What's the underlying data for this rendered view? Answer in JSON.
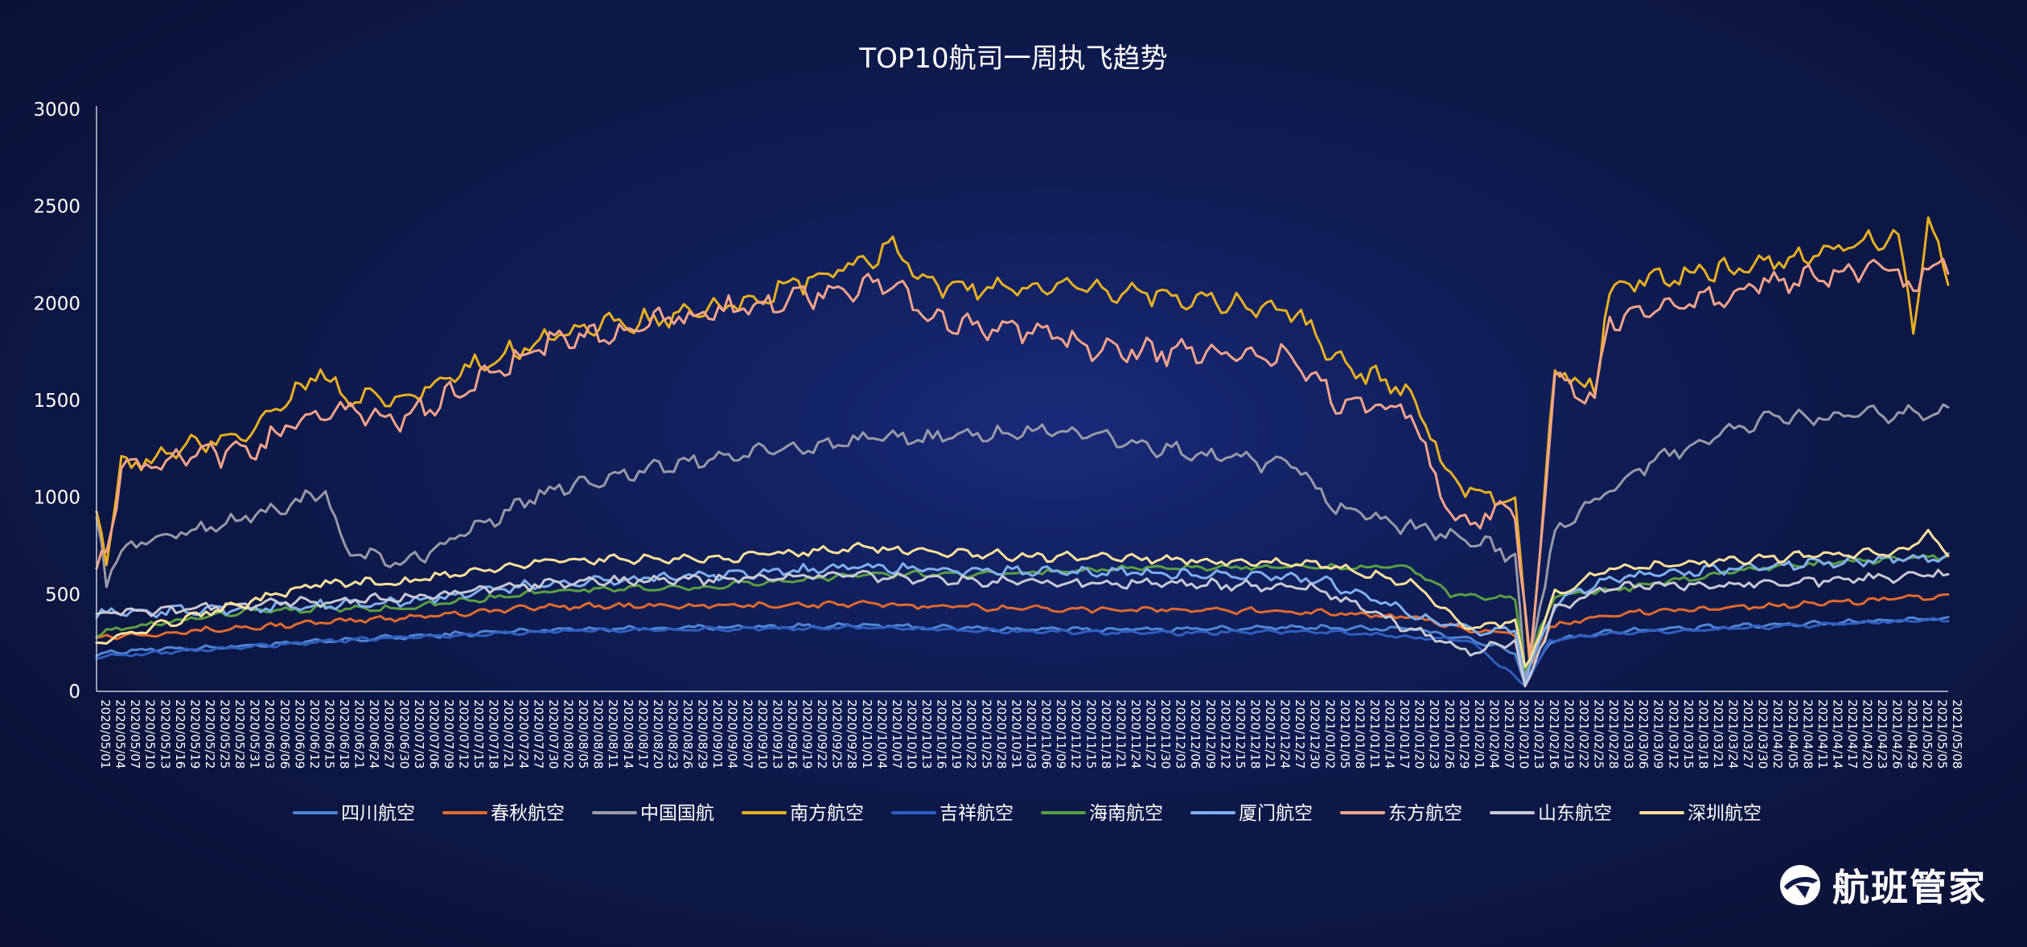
{
  "brand": {
    "name": "航班管家",
    "logo_icon": "airplane-globe-icon"
  },
  "chart_data": {
    "type": "line",
    "title": "TOP10航司一周执飞趋势",
    "xlabel": "",
    "ylabel": "",
    "ylim": [
      0,
      3000
    ],
    "yticks": [
      0,
      500,
      1000,
      1500,
      2000,
      2500,
      3000
    ],
    "grid": false,
    "legend_position": "bottom-center",
    "x_start": "2020/05/01",
    "x_end": "2021/05/08",
    "tick_labels": [
      "2020/05/01",
      "2020/05/04",
      "2020/05/07",
      "2020/05/10",
      "2020/05/13",
      "2020/05/16",
      "2020/05/19",
      "2020/05/22",
      "2020/05/25",
      "2020/05/28",
      "2020/05/31",
      "2020/06/03",
      "2020/06/06",
      "2020/06/09",
      "2020/06/12",
      "2020/06/15",
      "2020/06/18",
      "2020/06/21",
      "2020/06/24",
      "2020/06/27",
      "2020/06/30",
      "2020/07/03",
      "2020/07/06",
      "2020/07/09",
      "2020/07/12",
      "2020/07/15",
      "2020/07/18",
      "2020/07/21",
      "2020/07/24",
      "2020/07/27",
      "2020/07/30",
      "2020/08/02",
      "2020/08/05",
      "2020/08/08",
      "2020/08/11",
      "2020/08/14",
      "2020/08/17",
      "2020/08/20",
      "2020/08/23",
      "2020/08/26",
      "2020/08/29",
      "2020/09/01",
      "2020/09/04",
      "2020/09/07",
      "2020/09/10",
      "2020/09/13",
      "2020/09/16",
      "2020/09/19",
      "2020/09/22",
      "2020/09/25",
      "2020/09/28",
      "2020/10/01",
      "2020/10/04",
      "2020/10/07",
      "2020/10/10",
      "2020/10/13",
      "2020/10/16",
      "2020/10/19",
      "2020/10/22",
      "2020/10/25",
      "2020/10/28",
      "2020/10/31",
      "2020/11/03",
      "2020/11/06",
      "2020/11/09",
      "2020/11/12",
      "2020/11/15",
      "2020/11/18",
      "2020/11/21",
      "2020/11/24",
      "2020/11/27",
      "2020/11/30",
      "2020/12/03",
      "2020/12/06",
      "2020/12/09",
      "2020/12/12",
      "2020/12/15",
      "2020/12/18",
      "2020/12/21",
      "2020/12/24",
      "2020/12/27",
      "2020/12/30",
      "2021/01/02",
      "2021/01/05",
      "2021/01/08",
      "2021/01/11",
      "2021/01/14",
      "2021/01/17",
      "2021/01/20",
      "2021/01/23",
      "2021/01/26",
      "2021/01/29",
      "2021/02/01",
      "2021/02/04",
      "2021/02/07",
      "2021/02/10",
      "2021/02/13",
      "2021/02/16",
      "2021/02/19",
      "2021/02/22",
      "2021/02/25",
      "2021/02/28",
      "2021/03/03",
      "2021/03/06",
      "2021/03/09",
      "2021/03/12",
      "2021/03/15",
      "2021/03/18",
      "2021/03/21",
      "2021/03/24",
      "2021/03/27",
      "2021/03/30",
      "2021/04/02",
      "2021/04/05",
      "2021/04/08",
      "2021/04/11",
      "2021/04/14",
      "2021/04/17",
      "2021/04/20",
      "2021/04/23",
      "2021/04/26",
      "2021/04/29",
      "2021/05/02",
      "2021/05/05",
      "2021/05/08"
    ],
    "series": [
      {
        "name": "四川航空",
        "color": "#4f86d6",
        "keypoints": [
          [
            "2020/05/01",
            190
          ],
          [
            "2020/05/07",
            210
          ],
          [
            "2020/06/01",
            235
          ],
          [
            "2020/07/01",
            280
          ],
          [
            "2020/08/01",
            320
          ],
          [
            "2020/09/01",
            330
          ],
          [
            "2020/10/01",
            340
          ],
          [
            "2020/11/01",
            320
          ],
          [
            "2020/12/01",
            320
          ],
          [
            "2021/01/01",
            330
          ],
          [
            "2021/01/20",
            320
          ],
          [
            "2021/02/01",
            270
          ],
          [
            "2021/02/10",
            200
          ],
          [
            "2021/02/12",
            40
          ],
          [
            "2021/02/17",
            260
          ],
          [
            "2021/03/01",
            310
          ],
          [
            "2021/04/01",
            340
          ],
          [
            "2021/05/08",
            380
          ]
        ],
        "noise": 12
      },
      {
        "name": "春秋航空",
        "color": "#e06a2e",
        "keypoints": [
          [
            "2020/05/01",
            280
          ],
          [
            "2020/06/01",
            330
          ],
          [
            "2020/07/01",
            380
          ],
          [
            "2020/08/01",
            440
          ],
          [
            "2020/09/01",
            440
          ],
          [
            "2020/10/01",
            450
          ],
          [
            "2020/11/01",
            430
          ],
          [
            "2020/12/01",
            420
          ],
          [
            "2021/01/01",
            410
          ],
          [
            "2021/01/20",
            380
          ],
          [
            "2021/02/01",
            320
          ],
          [
            "2021/02/10",
            300
          ],
          [
            "2021/02/12",
            60
          ],
          [
            "2021/02/17",
            330
          ],
          [
            "2021/03/01",
            400
          ],
          [
            "2021/04/01",
            440
          ],
          [
            "2021/05/08",
            490
          ]
        ],
        "noise": 15
      },
      {
        "name": "中国国航",
        "color": "#9a9aa6",
        "keypoints": [
          [
            "2020/05/01",
            900
          ],
          [
            "2020/05/03",
            580
          ],
          [
            "2020/05/07",
            750
          ],
          [
            "2020/06/01",
            900
          ],
          [
            "2020/06/16",
            1020
          ],
          [
            "2020/06/20",
            740
          ],
          [
            "2020/07/01",
            650
          ],
          [
            "2020/08/01",
            1050
          ],
          [
            "2020/09/01",
            1200
          ],
          [
            "2020/10/01",
            1290
          ],
          [
            "2020/11/01",
            1330
          ],
          [
            "2020/11/10",
            1350
          ],
          [
            "2020/12/01",
            1250
          ],
          [
            "2020/12/28",
            1150
          ],
          [
            "2021/01/05",
            950
          ],
          [
            "2021/01/20",
            850
          ],
          [
            "2021/02/01",
            780
          ],
          [
            "2021/02/10",
            700
          ],
          [
            "2021/02/12",
            60
          ],
          [
            "2021/02/18",
            820
          ],
          [
            "2021/03/01",
            1050
          ],
          [
            "2021/03/15",
            1250
          ],
          [
            "2021/04/01",
            1400
          ],
          [
            "2021/05/08",
            1440
          ]
        ],
        "noise": 40
      },
      {
        "name": "南方航空",
        "color": "#e8b020",
        "keypoints": [
          [
            "2020/05/01",
            960
          ],
          [
            "2020/05/03",
            700
          ],
          [
            "2020/05/06",
            1150
          ],
          [
            "2020/06/01",
            1350
          ],
          [
            "2020/06/15",
            1650
          ],
          [
            "2020/06/20",
            1500
          ],
          [
            "2020/07/01",
            1500
          ],
          [
            "2020/08/01",
            1850
          ],
          [
            "2020/09/01",
            1950
          ],
          [
            "2020/10/01",
            2200
          ],
          [
            "2020/10/08",
            2280
          ],
          [
            "2020/10/15",
            2100
          ],
          [
            "2020/11/01",
            2080
          ],
          [
            "2020/12/01",
            2050
          ],
          [
            "2020/12/28",
            1950
          ],
          [
            "2021/01/05",
            1700
          ],
          [
            "2021/01/20",
            1550
          ],
          [
            "2021/01/28",
            1100
          ],
          [
            "2021/02/05",
            1000
          ],
          [
            "2021/02/10",
            1000
          ],
          [
            "2021/02/13",
            150
          ],
          [
            "2021/02/18",
            1650
          ],
          [
            "2021/02/26",
            1550
          ],
          [
            "2021/03/01",
            2100
          ],
          [
            "2021/04/01",
            2200
          ],
          [
            "2021/04/28",
            2350
          ],
          [
            "2021/05/01",
            1850
          ],
          [
            "2021/05/04",
            2450
          ],
          [
            "2021/05/08",
            2150
          ]
        ],
        "noise": 55
      },
      {
        "name": "吉祥航空",
        "color": "#2f5fbf",
        "keypoints": [
          [
            "2020/05/01",
            180
          ],
          [
            "2020/06/01",
            230
          ],
          [
            "2020/07/01",
            280
          ],
          [
            "2020/08/01",
            310
          ],
          [
            "2020/09/01",
            320
          ],
          [
            "2020/10/01",
            330
          ],
          [
            "2020/11/01",
            310
          ],
          [
            "2020/12/01",
            300
          ],
          [
            "2021/01/01",
            310
          ],
          [
            "2021/02/01",
            260
          ],
          [
            "2021/02/12",
            30
          ],
          [
            "2021/02/17",
            260
          ],
          [
            "2021/03/01",
            300
          ],
          [
            "2021/04/01",
            330
          ],
          [
            "2021/05/08",
            370
          ]
        ],
        "noise": 10
      },
      {
        "name": "海南航空",
        "color": "#5aa040",
        "keypoints": [
          [
            "2020/05/01",
            300
          ],
          [
            "2020/06/01",
            420
          ],
          [
            "2020/07/01",
            430
          ],
          [
            "2020/08/01",
            520
          ],
          [
            "2020/09/01",
            540
          ],
          [
            "2020/10/01",
            600
          ],
          [
            "2020/11/01",
            610
          ],
          [
            "2020/12/01",
            640
          ],
          [
            "2021/01/01",
            640
          ],
          [
            "2021/01/20",
            640
          ],
          [
            "2021/01/28",
            500
          ],
          [
            "2021/02/10",
            480
          ],
          [
            "2021/02/12",
            120
          ],
          [
            "2021/02/18",
            500
          ],
          [
            "2021/03/01",
            520
          ],
          [
            "2021/04/01",
            640
          ],
          [
            "2021/05/08",
            700
          ]
        ],
        "noise": 15
      },
      {
        "name": "厦门航空",
        "color": "#7fb0f0",
        "keypoints": [
          [
            "2020/05/01",
            400
          ],
          [
            "2020/06/01",
            430
          ],
          [
            "2020/07/01",
            460
          ],
          [
            "2020/08/01",
            560
          ],
          [
            "2020/09/01",
            600
          ],
          [
            "2020/10/01",
            640
          ],
          [
            "2020/11/01",
            620
          ],
          [
            "2020/12/01",
            610
          ],
          [
            "2021/01/01",
            580
          ],
          [
            "2021/01/20",
            400
          ],
          [
            "2021/02/01",
            310
          ],
          [
            "2021/02/10",
            320
          ],
          [
            "2021/02/12",
            60
          ],
          [
            "2021/02/18",
            460
          ],
          [
            "2021/03/01",
            580
          ],
          [
            "2021/04/01",
            650
          ],
          [
            "2021/05/08",
            690
          ]
        ],
        "noise": 25
      },
      {
        "name": "东方航空",
        "color": "#f4a48a",
        "keypoints": [
          [
            "2020/05/01",
            650
          ],
          [
            "2020/05/03",
            700
          ],
          [
            "2020/05/06",
            1150
          ],
          [
            "2020/06/01",
            1250
          ],
          [
            "2020/06/15",
            1450
          ],
          [
            "2020/07/01",
            1400
          ],
          [
            "2020/08/01",
            1800
          ],
          [
            "2020/09/01",
            1950
          ],
          [
            "2020/10/01",
            2080
          ],
          [
            "2020/10/08",
            2120
          ],
          [
            "2020/10/15",
            1900
          ],
          [
            "2020/11/01",
            1880
          ],
          [
            "2020/11/15",
            1780
          ],
          [
            "2020/12/01",
            1750
          ],
          [
            "2020/12/28",
            1720
          ],
          [
            "2021/01/05",
            1500
          ],
          [
            "2021/01/20",
            1450
          ],
          [
            "2021/01/28",
            900
          ],
          [
            "2021/02/05",
            900
          ],
          [
            "2021/02/10",
            950
          ],
          [
            "2021/02/13",
            120
          ],
          [
            "2021/02/18",
            1600
          ],
          [
            "2021/02/26",
            1500
          ],
          [
            "2021/03/01",
            1900
          ],
          [
            "2021/04/01",
            2100
          ],
          [
            "2021/04/28",
            2200
          ],
          [
            "2021/05/01",
            2000
          ],
          [
            "2021/05/04",
            2250
          ],
          [
            "2021/05/08",
            2150
          ]
        ],
        "noise": 60
      },
      {
        "name": "山东航空",
        "color": "#c9c9d2",
        "keypoints": [
          [
            "2020/05/01",
            400
          ],
          [
            "2020/06/01",
            450
          ],
          [
            "2020/07/01",
            480
          ],
          [
            "2020/08/01",
            560
          ],
          [
            "2020/09/01",
            580
          ],
          [
            "2020/10/01",
            600
          ],
          [
            "2020/11/01",
            560
          ],
          [
            "2020/12/01",
            560
          ],
          [
            "2021/01/01",
            530
          ],
          [
            "2021/01/20",
            320
          ],
          [
            "2021/02/01",
            200
          ],
          [
            "2021/02/10",
            260
          ],
          [
            "2021/02/12",
            20
          ],
          [
            "2021/02/18",
            420
          ],
          [
            "2021/03/01",
            540
          ],
          [
            "2021/04/01",
            560
          ],
          [
            "2021/05/08",
            600
          ]
        ],
        "noise": 25
      },
      {
        "name": "深圳航空",
        "color": "#ffe19a",
        "keypoints": [
          [
            "2020/05/01",
            260
          ],
          [
            "2020/06/01",
            460
          ],
          [
            "2020/06/15",
            560
          ],
          [
            "2020/07/01",
            560
          ],
          [
            "2020/08/01",
            680
          ],
          [
            "2020/09/01",
            680
          ],
          [
            "2020/10/01",
            740
          ],
          [
            "2020/11/01",
            700
          ],
          [
            "2020/12/01",
            680
          ],
          [
            "2021/01/01",
            660
          ],
          [
            "2021/01/20",
            560
          ],
          [
            "2021/02/01",
            320
          ],
          [
            "2021/02/10",
            370
          ],
          [
            "2021/02/12",
            110
          ],
          [
            "2021/02/18",
            500
          ],
          [
            "2021/03/01",
            630
          ],
          [
            "2021/04/01",
            690
          ],
          [
            "2021/04/30",
            720
          ],
          [
            "2021/05/04",
            820
          ],
          [
            "2021/05/08",
            700
          ]
        ],
        "noise": 22
      }
    ]
  }
}
